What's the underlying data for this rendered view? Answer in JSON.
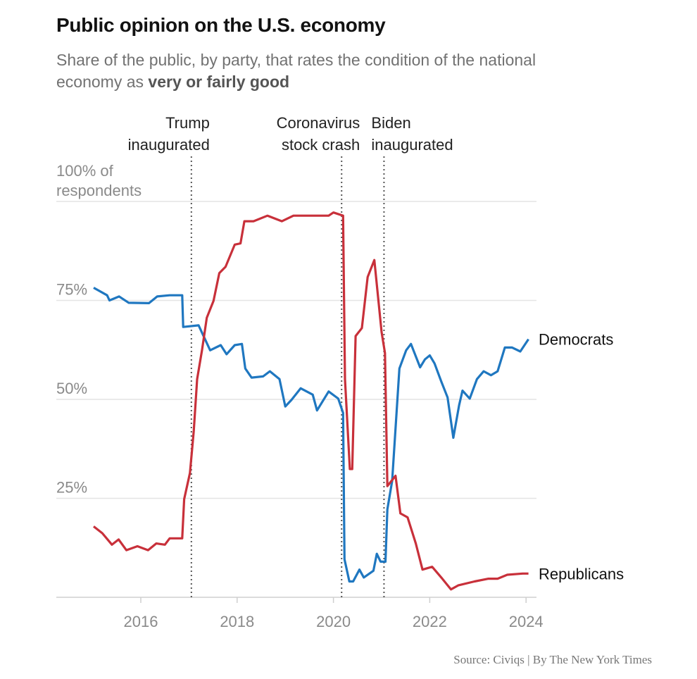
{
  "chart_data": {
    "type": "line",
    "title": "Public opinion on the U.S. economy",
    "subtitle_prefix": "Share of the public, by party, that rates the condition of the national economy as ",
    "subtitle_emphasis": "very or fairly good",
    "ylabel_top": [
      "100% of",
      "respondents"
    ],
    "yticks": [
      {
        "value": 100,
        "label": ""
      },
      {
        "value": 75,
        "label": "75%"
      },
      {
        "value": 50,
        "label": "50%"
      },
      {
        "value": 25,
        "label": "25%"
      }
    ],
    "xticks": [
      2016,
      2018,
      2020,
      2022,
      2024
    ],
    "xlim": [
      2015,
      2024.1
    ],
    "ylim": [
      0,
      100
    ],
    "grid": true,
    "annotations": [
      {
        "x": 2017.05,
        "lines": [
          "Trump",
          "inaugurated"
        ]
      },
      {
        "x": 2020.17,
        "lines": [
          "Coronavirus",
          "stock crash"
        ]
      },
      {
        "x": 2021.05,
        "lines": [
          "Biden",
          "inaugurated"
        ]
      }
    ],
    "series": [
      {
        "name": "Democrats",
        "color": "#1f77c0",
        "points": [
          [
            2015.02,
            78.2
          ],
          [
            2015.3,
            76.3
          ],
          [
            2015.35,
            75
          ],
          [
            2015.55,
            76
          ],
          [
            2015.75,
            74.4
          ],
          [
            2016.17,
            74.3
          ],
          [
            2016.34,
            76
          ],
          [
            2016.6,
            76.3
          ],
          [
            2016.86,
            76.3
          ],
          [
            2016.88,
            68.3
          ],
          [
            2017.2,
            68.7
          ],
          [
            2017.44,
            62.4
          ],
          [
            2017.66,
            63.7
          ],
          [
            2017.78,
            61.4
          ],
          [
            2017.95,
            63.7
          ],
          [
            2018.1,
            64
          ],
          [
            2018.17,
            57.8
          ],
          [
            2018.3,
            55.5
          ],
          [
            2018.54,
            55.8
          ],
          [
            2018.68,
            57.1
          ],
          [
            2018.88,
            55.1
          ],
          [
            2019.0,
            48.2
          ],
          [
            2019.13,
            49.9
          ],
          [
            2019.32,
            52.8
          ],
          [
            2019.57,
            51.2
          ],
          [
            2019.66,
            47.2
          ],
          [
            2019.9,
            52
          ],
          [
            2020.1,
            50.2
          ],
          [
            2020.2,
            46.6
          ],
          [
            2020.23,
            9.6
          ],
          [
            2020.33,
            4
          ],
          [
            2020.41,
            4
          ],
          [
            2020.54,
            7
          ],
          [
            2020.63,
            5
          ],
          [
            2020.83,
            6.7
          ],
          [
            2020.9,
            11
          ],
          [
            2020.98,
            9
          ],
          [
            2021.08,
            9
          ],
          [
            2021.12,
            22.2
          ],
          [
            2021.22,
            29.4
          ],
          [
            2021.37,
            57.8
          ],
          [
            2021.51,
            62.4
          ],
          [
            2021.61,
            64
          ],
          [
            2021.8,
            58.1
          ],
          [
            2021.9,
            60.1
          ],
          [
            2022.0,
            61.1
          ],
          [
            2022.1,
            59.1
          ],
          [
            2022.24,
            54.5
          ],
          [
            2022.37,
            50.5
          ],
          [
            2022.49,
            40.3
          ],
          [
            2022.61,
            48.5
          ],
          [
            2022.68,
            52.2
          ],
          [
            2022.83,
            50.2
          ],
          [
            2022.98,
            55.1
          ],
          [
            2023.12,
            57.1
          ],
          [
            2023.27,
            56.1
          ],
          [
            2023.41,
            57.1
          ],
          [
            2023.56,
            63.1
          ],
          [
            2023.71,
            63.1
          ],
          [
            2023.88,
            62.1
          ],
          [
            2024.05,
            65.2
          ]
        ]
      },
      {
        "name": "Republicans",
        "color": "#c8303a",
        "points": [
          [
            2015.02,
            17.9
          ],
          [
            2015.2,
            16.2
          ],
          [
            2015.4,
            13.3
          ],
          [
            2015.54,
            14.6
          ],
          [
            2015.7,
            11.9
          ],
          [
            2015.93,
            12.9
          ],
          [
            2016.15,
            11.9
          ],
          [
            2016.32,
            13.6
          ],
          [
            2016.5,
            13.3
          ],
          [
            2016.6,
            14.9
          ],
          [
            2016.86,
            14.9
          ],
          [
            2016.9,
            24.8
          ],
          [
            2017.02,
            31.4
          ],
          [
            2017.1,
            42
          ],
          [
            2017.17,
            55.1
          ],
          [
            2017.27,
            62.4
          ],
          [
            2017.37,
            70.6
          ],
          [
            2017.51,
            74.9
          ],
          [
            2017.63,
            81.9
          ],
          [
            2017.76,
            83.5
          ],
          [
            2017.95,
            89.1
          ],
          [
            2018.07,
            89.4
          ],
          [
            2018.15,
            95
          ],
          [
            2018.34,
            95
          ],
          [
            2018.63,
            96.4
          ],
          [
            2018.93,
            95
          ],
          [
            2019.17,
            96.4
          ],
          [
            2019.9,
            96.4
          ],
          [
            2020.0,
            97.2
          ],
          [
            2020.2,
            96.4
          ],
          [
            2020.24,
            55.1
          ],
          [
            2020.34,
            32.4
          ],
          [
            2020.39,
            32.4
          ],
          [
            2020.46,
            66
          ],
          [
            2020.59,
            68
          ],
          [
            2020.71,
            80.9
          ],
          [
            2020.85,
            85.2
          ],
          [
            2021.0,
            67
          ],
          [
            2021.07,
            61.7
          ],
          [
            2021.12,
            28.1
          ],
          [
            2021.29,
            30.7
          ],
          [
            2021.39,
            21.2
          ],
          [
            2021.54,
            20.2
          ],
          [
            2021.71,
            13.6
          ],
          [
            2021.85,
            7
          ],
          [
            2022.05,
            7.7
          ],
          [
            2022.24,
            5
          ],
          [
            2022.44,
            2
          ],
          [
            2022.59,
            3
          ],
          [
            2022.93,
            4
          ],
          [
            2023.22,
            4.7
          ],
          [
            2023.41,
            4.7
          ],
          [
            2023.61,
            5.7
          ],
          [
            2023.93,
            6
          ],
          [
            2024.05,
            6
          ]
        ]
      }
    ],
    "source": "Source: Civiqs | By The New York Times"
  }
}
